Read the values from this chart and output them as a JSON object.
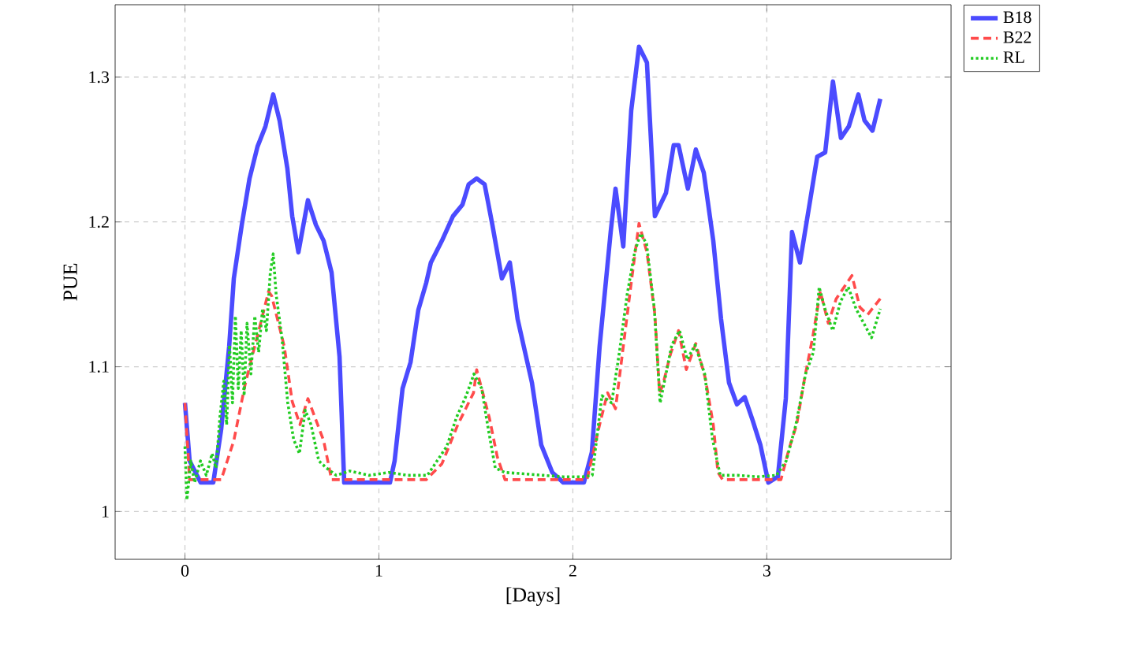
{
  "chart_data": {
    "type": "line",
    "xlabel": "[Days]",
    "ylabel": "PUE",
    "xlim": [
      -0.36,
      3.95
    ],
    "ylim": [
      0.967,
      1.35
    ],
    "xticks": [
      0,
      1,
      2,
      3
    ],
    "yticks": [
      1,
      1.1,
      1.2,
      1.3
    ],
    "grid": true,
    "legend": "right",
    "marker": "none",
    "series": [
      {
        "name": "B18",
        "color": "#4b4bff",
        "line_style": "solid",
        "x": [
          0.0,
          0.024,
          0.081,
          0.146,
          0.187,
          0.228,
          0.252,
          0.293,
          0.333,
          0.374,
          0.415,
          0.455,
          0.488,
          0.528,
          0.553,
          0.585,
          0.634,
          0.675,
          0.715,
          0.756,
          0.797,
          0.821,
          1.057,
          1.081,
          1.122,
          1.163,
          1.203,
          1.244,
          1.268,
          1.325,
          1.382,
          1.431,
          1.463,
          1.504,
          1.545,
          1.585,
          1.634,
          1.675,
          1.715,
          1.789,
          1.837,
          1.894,
          1.951,
          2.057,
          2.098,
          2.138,
          2.195,
          2.22,
          2.26,
          2.301,
          2.341,
          2.382,
          2.423,
          2.48,
          2.52,
          2.545,
          2.593,
          2.634,
          2.675,
          2.724,
          2.764,
          2.805,
          2.846,
          2.886,
          2.927,
          2.967,
          3.008,
          3.057,
          3.098,
          3.13,
          3.171,
          3.22,
          3.26,
          3.301,
          3.341,
          3.382,
          3.423,
          3.472,
          3.504,
          3.545,
          3.585
        ],
        "values": [
          1.075,
          1.035,
          1.02,
          1.02,
          1.057,
          1.114,
          1.161,
          1.198,
          1.23,
          1.252,
          1.266,
          1.288,
          1.27,
          1.237,
          1.204,
          1.179,
          1.215,
          1.198,
          1.187,
          1.165,
          1.107,
          1.02,
          1.02,
          1.035,
          1.085,
          1.103,
          1.139,
          1.158,
          1.172,
          1.187,
          1.204,
          1.212,
          1.226,
          1.23,
          1.226,
          1.198,
          1.161,
          1.172,
          1.133,
          1.089,
          1.046,
          1.027,
          1.02,
          1.02,
          1.041,
          1.114,
          1.193,
          1.223,
          1.183,
          1.277,
          1.321,
          1.31,
          1.204,
          1.22,
          1.253,
          1.253,
          1.223,
          1.25,
          1.234,
          1.187,
          1.133,
          1.089,
          1.074,
          1.079,
          1.063,
          1.046,
          1.02,
          1.024,
          1.078,
          1.193,
          1.172,
          1.212,
          1.245,
          1.248,
          1.297,
          1.258,
          1.266,
          1.288,
          1.27,
          1.263,
          1.285
        ]
      },
      {
        "name": "B22",
        "color": "#ff4b4b",
        "line_style": "dashed",
        "x": [
          0.0,
          0.024,
          0.187,
          0.252,
          0.309,
          0.35,
          0.39,
          0.431,
          0.447,
          0.512,
          0.553,
          0.593,
          0.634,
          0.715,
          0.756,
          1.244,
          1.325,
          1.407,
          1.488,
          1.504,
          1.569,
          1.61,
          1.65,
          2.073,
          2.138,
          2.179,
          2.22,
          2.26,
          2.301,
          2.341,
          2.382,
          2.423,
          2.447,
          2.463,
          2.504,
          2.545,
          2.585,
          2.634,
          2.683,
          2.724,
          2.748,
          2.772,
          3.073,
          3.114,
          3.154,
          3.195,
          3.236,
          3.276,
          3.317,
          3.358,
          3.439,
          3.48,
          3.52,
          3.585
        ],
        "values": [
          1.075,
          1.022,
          1.022,
          1.049,
          1.087,
          1.109,
          1.13,
          1.152,
          1.149,
          1.114,
          1.076,
          1.06,
          1.078,
          1.049,
          1.022,
          1.022,
          1.033,
          1.06,
          1.082,
          1.098,
          1.065,
          1.038,
          1.022,
          1.022,
          1.06,
          1.082,
          1.071,
          1.114,
          1.158,
          1.199,
          1.179,
          1.136,
          1.082,
          1.087,
          1.109,
          1.125,
          1.098,
          1.116,
          1.092,
          1.06,
          1.027,
          1.022,
          1.022,
          1.043,
          1.06,
          1.092,
          1.12,
          1.152,
          1.13,
          1.147,
          1.163,
          1.141,
          1.136,
          1.147
        ]
      },
      {
        "name": "RL",
        "color": "#22cc22",
        "line_style": "dotted",
        "x": [
          0.0,
          0.01,
          0.03,
          0.05,
          0.08,
          0.11,
          0.14,
          0.16,
          0.18,
          0.2,
          0.215,
          0.23,
          0.245,
          0.26,
          0.275,
          0.29,
          0.305,
          0.32,
          0.34,
          0.36,
          0.38,
          0.4,
          0.42,
          0.44,
          0.455,
          0.47,
          0.5,
          0.53,
          0.56,
          0.59,
          0.62,
          0.65,
          0.69,
          0.73,
          0.78,
          0.85,
          0.95,
          1.05,
          1.15,
          1.25,
          1.3,
          1.35,
          1.4,
          1.45,
          1.49,
          1.53,
          1.56,
          1.6,
          1.65,
          1.75,
          1.85,
          1.95,
          2.05,
          2.1,
          2.15,
          2.2,
          2.24,
          2.28,
          2.32,
          2.35,
          2.38,
          2.42,
          2.45,
          2.48,
          2.51,
          2.55,
          2.59,
          2.63,
          2.68,
          2.72,
          2.76,
          2.85,
          2.95,
          3.05,
          3.1,
          3.15,
          3.2,
          3.24,
          3.27,
          3.3,
          3.34,
          3.38,
          3.42,
          3.46,
          3.5,
          3.54,
          3.585
        ],
        "values": [
          1.045,
          1.008,
          1.035,
          1.02,
          1.035,
          1.025,
          1.04,
          1.03,
          1.065,
          1.09,
          1.06,
          1.115,
          1.075,
          1.135,
          1.085,
          1.125,
          1.08,
          1.13,
          1.095,
          1.135,
          1.11,
          1.14,
          1.125,
          1.165,
          1.178,
          1.15,
          1.12,
          1.075,
          1.05,
          1.04,
          1.07,
          1.06,
          1.035,
          1.03,
          1.025,
          1.028,
          1.025,
          1.027,
          1.025,
          1.025,
          1.035,
          1.045,
          1.065,
          1.08,
          1.095,
          1.085,
          1.06,
          1.03,
          1.027,
          1.026,
          1.025,
          1.024,
          1.024,
          1.025,
          1.08,
          1.075,
          1.11,
          1.15,
          1.18,
          1.192,
          1.185,
          1.14,
          1.075,
          1.095,
          1.115,
          1.125,
          1.105,
          1.115,
          1.095,
          1.05,
          1.025,
          1.025,
          1.024,
          1.025,
          1.035,
          1.06,
          1.095,
          1.11,
          1.155,
          1.14,
          1.125,
          1.145,
          1.155,
          1.14,
          1.13,
          1.12,
          1.14
        ]
      }
    ]
  }
}
